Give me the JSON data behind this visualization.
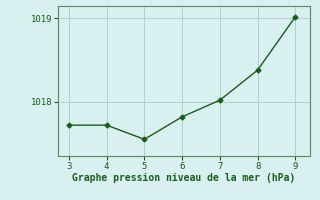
{
  "x": [
    3,
    4,
    5,
    6,
    7,
    8,
    9
  ],
  "y": [
    1017.72,
    1017.72,
    1017.55,
    1017.82,
    1018.02,
    1018.38,
    1019.02
  ],
  "line_color": "#1a5c1a",
  "marker": "D",
  "marker_size": 2.5,
  "background_color": "#d8f0f0",
  "grid_color": "#b0c8c8",
  "spine_color": "#5a8a5a",
  "xlabel": "Graphe pression niveau de la mer (hPa)",
  "xlabel_color": "#1a5c1a",
  "xlabel_fontsize": 7,
  "tick_label_color": "#1a5c1a",
  "tick_fontsize": 6.5,
  "xlim": [
    2.7,
    9.4
  ],
  "ylim": [
    1017.35,
    1019.15
  ],
  "yticks": [
    1018,
    1019
  ],
  "xticks": [
    3,
    4,
    5,
    6,
    7,
    8,
    9
  ],
  "line_width": 1.0
}
